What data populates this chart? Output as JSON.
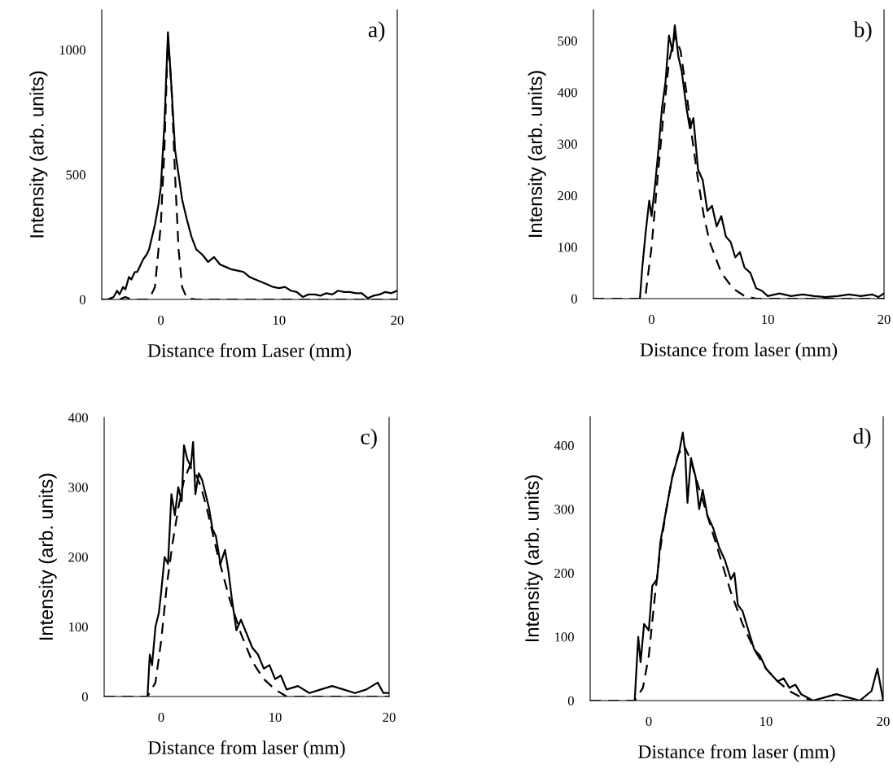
{
  "chart_data": [
    {
      "type": "line",
      "annotations": [
        "a)"
      ],
      "xlabel": "Distance from Laser (mm)",
      "ylabel": "Intensity (arb. units)",
      "xlim": [
        -5,
        20
      ],
      "xticks": [
        0,
        10,
        20
      ],
      "ylim": [
        0,
        1160
      ],
      "yticks": [
        0,
        500,
        1000
      ],
      "grid": false,
      "legend": false,
      "series": [
        {
          "color": "#000000",
          "line_style": "solid",
          "x": [
            -4.5,
            -4,
            -3.7,
            -3.5,
            -3.2,
            -3,
            -2.7,
            -2.5,
            -2.2,
            -2,
            -1.7,
            -1.5,
            -1.2,
            -1,
            -0.7,
            -0.5,
            -0.2,
            0,
            0.3,
            0.6,
            0.9,
            1.2,
            1.5,
            1.8,
            2.2,
            2.6,
            3,
            3.5,
            4,
            4.5,
            5,
            5.5,
            6,
            6.5,
            7,
            7.5,
            8,
            8.5,
            9,
            9.5,
            10,
            10.5,
            11,
            11.5,
            12,
            12.5,
            13,
            13.5,
            14,
            14.5,
            15,
            15.5,
            16,
            16.5,
            17,
            17.5,
            18,
            18.5,
            19,
            19.5,
            20
          ],
          "values": [
            0,
            10,
            35,
            20,
            50,
            40,
            90,
            80,
            110,
            110,
            140,
            160,
            180,
            200,
            260,
            300,
            380,
            450,
            700,
            1070,
            850,
            600,
            500,
            400,
            320,
            250,
            200,
            180,
            150,
            170,
            140,
            130,
            120,
            115,
            110,
            90,
            80,
            70,
            60,
            50,
            45,
            50,
            35,
            30,
            10,
            20,
            20,
            15,
            25,
            20,
            35,
            30,
            30,
            25,
            25,
            5,
            15,
            20,
            30,
            25,
            35
          ]
        },
        {
          "color": "#000000",
          "line_style": "dashed",
          "x": [
            -5,
            -3.5,
            -3,
            -2.5,
            -2,
            -1,
            -0.5,
            0,
            0.3,
            0.6,
            0.9,
            1.2,
            1.5,
            1.8,
            2.2,
            3,
            20
          ],
          "values": [
            0,
            0,
            10,
            0,
            0,
            0,
            50,
            300,
            600,
            1050,
            850,
            500,
            200,
            50,
            5,
            0,
            0
          ]
        }
      ]
    },
    {
      "type": "line",
      "annotations": [
        "b)"
      ],
      "xlabel": "Distance from laser (mm)",
      "ylabel": "Intensity (arb. units)",
      "xlim": [
        -5,
        20
      ],
      "xticks": [
        0,
        10,
        20
      ],
      "ylim": [
        0,
        560
      ],
      "yticks": [
        0,
        100,
        200,
        300,
        400,
        500
      ],
      "grid": false,
      "legend": false,
      "series": [
        {
          "color": "#000000",
          "line_style": "solid",
          "x": [
            -1,
            -0.8,
            -0.5,
            -0.2,
            0,
            0.3,
            0.6,
            0.9,
            1.2,
            1.5,
            1.8,
            2,
            2.3,
            2.6,
            3,
            3.3,
            3.6,
            4,
            4.4,
            4.8,
            5.2,
            5.6,
            6,
            6.4,
            6.8,
            7.2,
            7.6,
            8,
            8.5,
            9,
            9.5,
            10,
            11,
            12,
            13,
            14,
            15,
            16,
            17,
            18,
            19,
            19.5,
            20
          ],
          "values": [
            0,
            60,
            130,
            190,
            160,
            220,
            290,
            370,
            420,
            510,
            480,
            530,
            470,
            440,
            370,
            330,
            350,
            250,
            230,
            170,
            180,
            140,
            160,
            120,
            110,
            80,
            90,
            60,
            50,
            20,
            15,
            5,
            10,
            5,
            8,
            5,
            3,
            5,
            8,
            5,
            8,
            3,
            10
          ]
        },
        {
          "color": "#000000",
          "line_style": "dashed",
          "x": [
            -5,
            -1,
            -0.5,
            0,
            0.5,
            1,
            1.5,
            2,
            2.5,
            3,
            3.5,
            4,
            4.5,
            5,
            6,
            7,
            8,
            9,
            20
          ],
          "values": [
            0,
            0,
            10,
            100,
            230,
            350,
            460,
            510,
            480,
            400,
            310,
            230,
            160,
            110,
            50,
            20,
            5,
            0,
            0
          ]
        }
      ]
    },
    {
      "type": "line",
      "annotations": [
        "c)"
      ],
      "xlabel": "Distance from laser (mm)",
      "ylabel": "Intensity (arb. units)",
      "xlim": [
        -5,
        20
      ],
      "xticks": [
        0,
        10,
        20
      ],
      "ylim": [
        0,
        400
      ],
      "yticks": [
        0,
        100,
        200,
        300,
        400
      ],
      "grid": false,
      "legend": false,
      "series": [
        {
          "color": "#000000",
          "line_style": "solid",
          "x": [
            -1.2,
            -1,
            -0.8,
            -0.5,
            -0.2,
            0,
            0.3,
            0.6,
            0.9,
            1.2,
            1.5,
            1.8,
            2,
            2.3,
            2.6,
            2.8,
            3,
            3.3,
            3.6,
            3.9,
            4.2,
            4.5,
            4.8,
            5.2,
            5.6,
            5.9,
            6.2,
            6.6,
            7,
            7.5,
            8,
            8.5,
            9,
            9.5,
            10,
            10.5,
            11,
            12,
            13,
            14,
            15,
            16,
            17,
            18,
            19,
            19.5,
            20
          ],
          "values": [
            0,
            60,
            45,
            100,
            120,
            150,
            200,
            190,
            290,
            260,
            300,
            280,
            360,
            340,
            330,
            365,
            290,
            320,
            310,
            290,
            270,
            240,
            230,
            190,
            210,
            180,
            140,
            95,
            110,
            90,
            70,
            60,
            40,
            45,
            25,
            30,
            10,
            15,
            5,
            10,
            15,
            10,
            5,
            10,
            20,
            5,
            5
          ]
        },
        {
          "color": "#000000",
          "line_style": "dashed",
          "x": [
            -5,
            -1.2,
            -0.5,
            0,
            0.5,
            1,
            1.5,
            2,
            2.5,
            3,
            3.5,
            4,
            5,
            6,
            7,
            8,
            9,
            10,
            11,
            20
          ],
          "values": [
            0,
            0,
            20,
            80,
            160,
            220,
            270,
            310,
            330,
            320,
            300,
            270,
            200,
            140,
            90,
            50,
            25,
            10,
            0,
            0
          ]
        }
      ]
    },
    {
      "type": "line",
      "annotations": [
        "d)"
      ],
      "xlabel": "Distance from laser (mm)",
      "ylabel": "Intensity (arb. units)",
      "xlim": [
        -5,
        20
      ],
      "xticks": [
        0,
        10,
        20
      ],
      "ylim": [
        0,
        445
      ],
      "yticks": [
        0,
        100,
        200,
        300,
        400
      ],
      "grid": false,
      "legend": false,
      "series": [
        {
          "color": "#000000",
          "line_style": "solid",
          "x": [
            -1.2,
            -0.9,
            -0.7,
            -0.4,
            0,
            0.3,
            0.7,
            1,
            1.5,
            2,
            2.3,
            2.6,
            2.9,
            3.1,
            3.3,
            3.6,
            4,
            4.3,
            4.6,
            5,
            5.5,
            6,
            6.5,
            7,
            7.3,
            7.6,
            8,
            8.5,
            9,
            9.5,
            10,
            10.5,
            11,
            11.5,
            12,
            12.5,
            13,
            13.5,
            14,
            15,
            16,
            17,
            18,
            19,
            19.5,
            20
          ],
          "values": [
            0,
            100,
            60,
            120,
            110,
            180,
            190,
            250,
            300,
            350,
            370,
            390,
            420,
            390,
            310,
            380,
            350,
            300,
            330,
            290,
            270,
            240,
            220,
            190,
            200,
            150,
            140,
            110,
            80,
            70,
            50,
            40,
            30,
            35,
            20,
            25,
            10,
            5,
            0,
            5,
            10,
            5,
            0,
            15,
            50,
            0
          ]
        },
        {
          "color": "#000000",
          "line_style": "dashed",
          "x": [
            -5,
            -1.2,
            -0.5,
            0,
            0.5,
            1,
            1.5,
            2,
            2.5,
            3,
            3.5,
            4,
            5,
            6,
            7,
            8,
            9,
            10,
            11,
            12,
            13,
            14,
            20
          ],
          "values": [
            0,
            0,
            20,
            70,
            160,
            240,
            300,
            350,
            385,
            400,
            380,
            350,
            290,
            230,
            170,
            120,
            80,
            50,
            30,
            15,
            5,
            0,
            0
          ]
        }
      ]
    }
  ]
}
